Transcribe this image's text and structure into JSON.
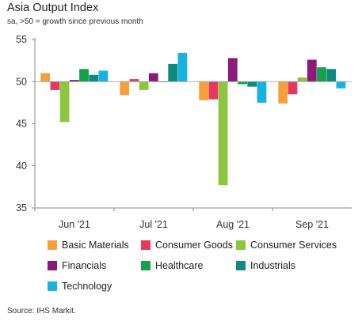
{
  "title": "Asia Output Index",
  "subtitle": "sa, >50 = growth since previous month",
  "source": "Source: IHS Markit.",
  "chart_data": {
    "type": "bar",
    "categories": [
      "Jun '21",
      "Jul '21",
      "Aug '21",
      "Sep '21"
    ],
    "ylim": [
      35,
      55
    ],
    "yticks": [
      35,
      40,
      45,
      50,
      55
    ],
    "baseline": 50,
    "grid": false,
    "legend_position": "bottom",
    "series": [
      {
        "name": "Basic Materials",
        "color": "#f5a03a",
        "values": [
          51.0,
          48.4,
          47.8,
          47.4
        ]
      },
      {
        "name": "Consumer Goods",
        "color": "#e8395d",
        "values": [
          49.0,
          50.3,
          47.9,
          48.5
        ]
      },
      {
        "name": "Consumer Services",
        "color": "#8cc63f",
        "values": [
          45.2,
          49.0,
          37.7,
          50.5
        ]
      },
      {
        "name": "Financials",
        "color": "#8b1a7a",
        "values": [
          50.2,
          51.0,
          52.8,
          52.6
        ]
      },
      {
        "name": "Healthcare",
        "color": "#13a14a",
        "values": [
          51.5,
          50.0,
          49.7,
          51.7
        ]
      },
      {
        "name": "Industrials",
        "color": "#0f8a7e",
        "values": [
          50.8,
          52.1,
          49.4,
          51.5
        ]
      },
      {
        "name": "Technology",
        "color": "#17b3e0",
        "values": [
          51.3,
          53.4,
          47.5,
          49.2
        ]
      }
    ]
  }
}
